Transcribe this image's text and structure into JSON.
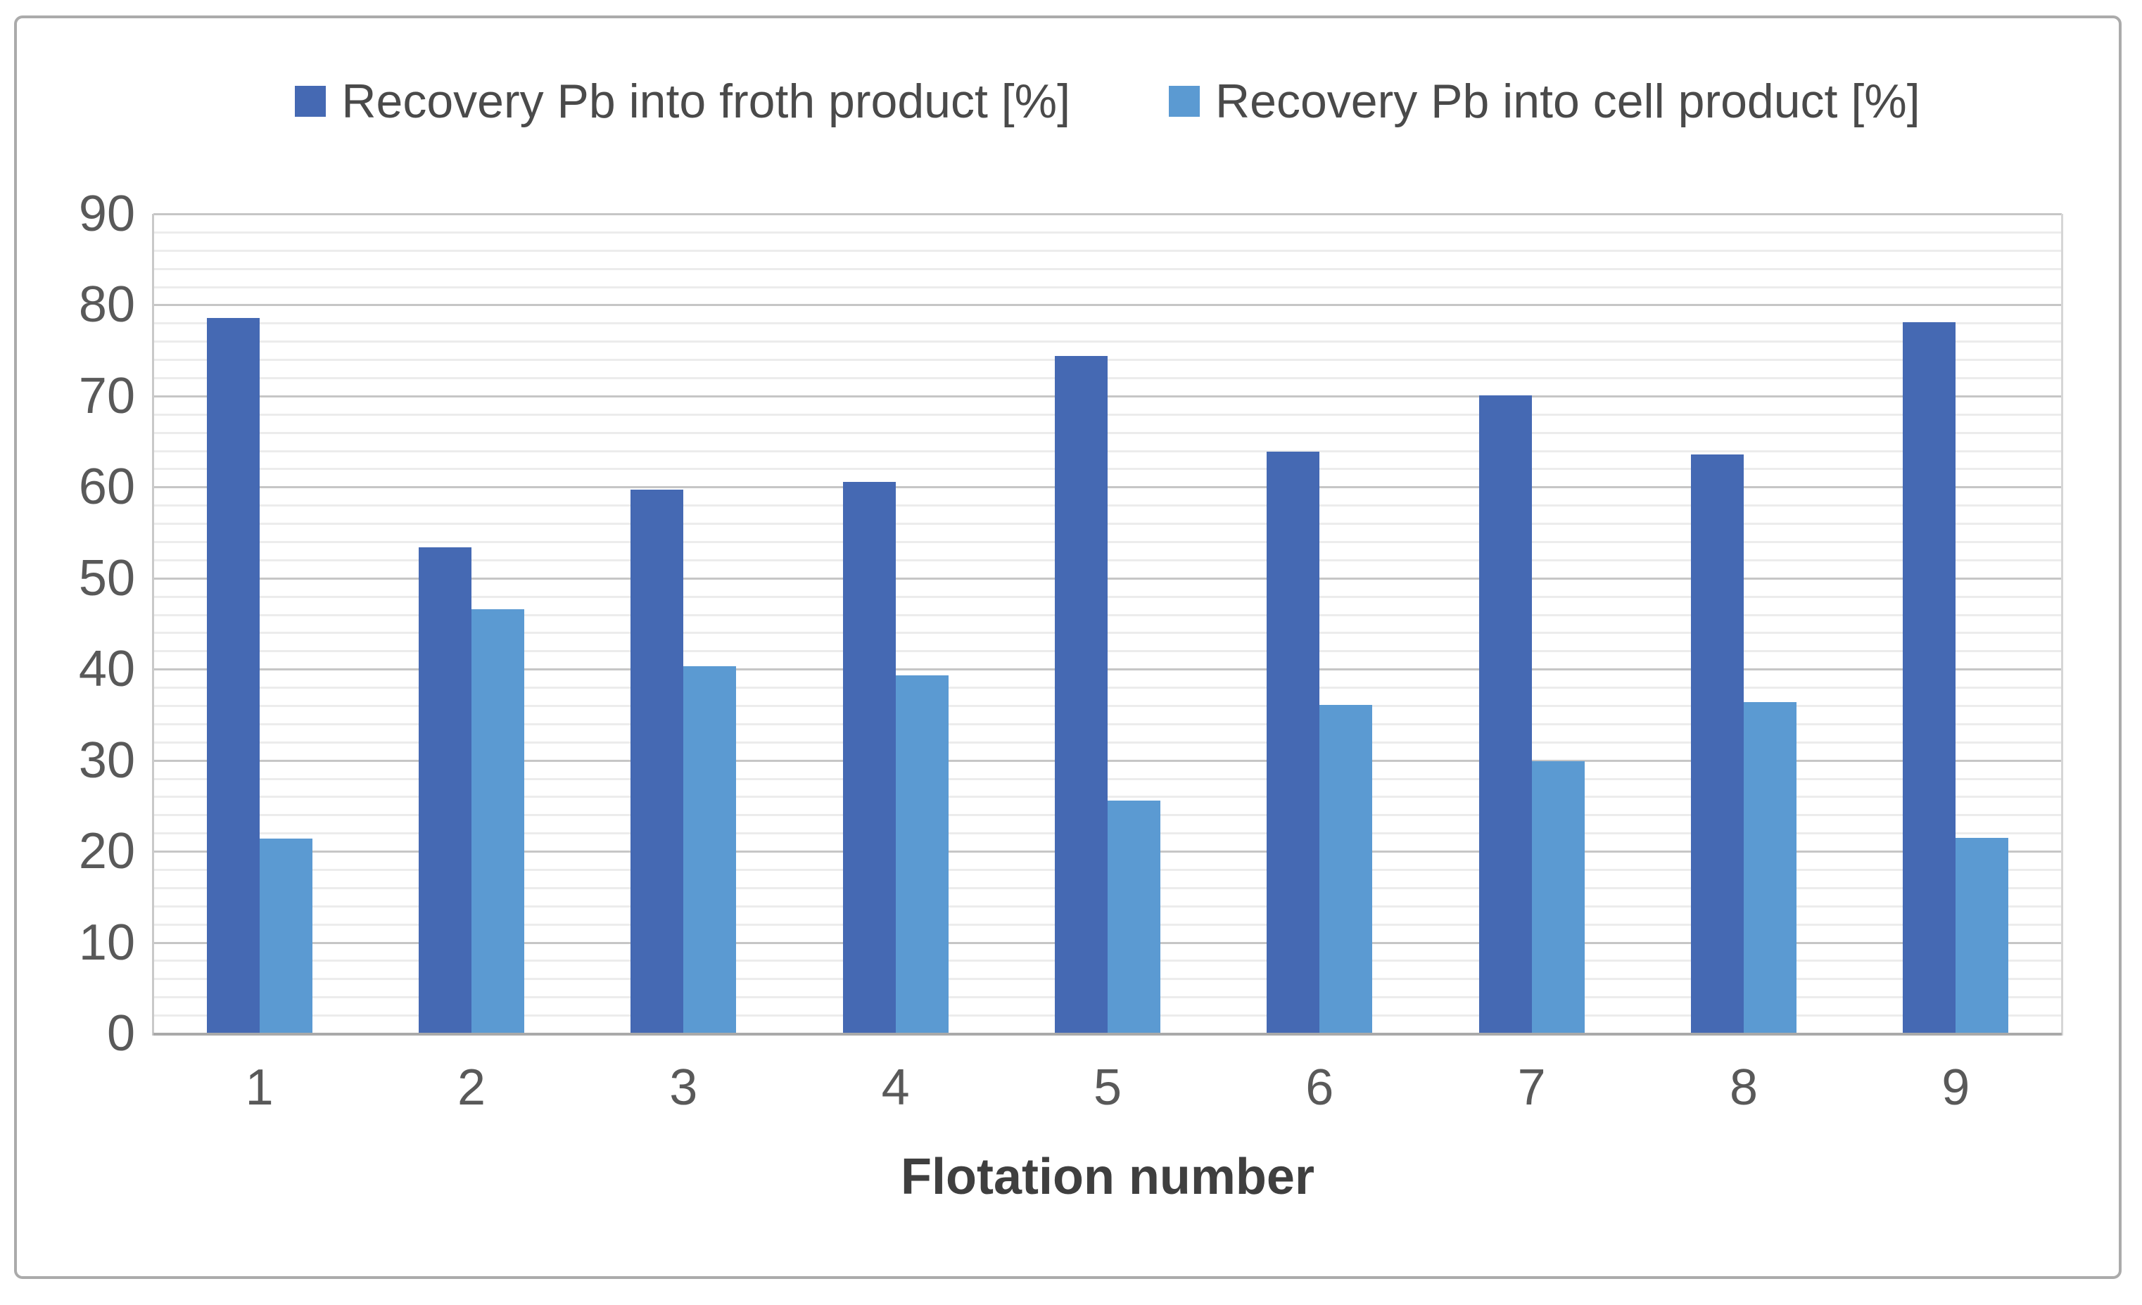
{
  "chart_data": {
    "type": "bar",
    "title": "",
    "xlabel": "Flotation number",
    "ylabel": "",
    "categories": [
      "1",
      "2",
      "3",
      "4",
      "5",
      "6",
      "7",
      "8",
      "9"
    ],
    "series": [
      {
        "name": "Recovery Pb into froth product [%]",
        "color": "#4569b3",
        "values": [
          78.6,
          53.4,
          59.7,
          60.6,
          74.4,
          63.9,
          70.1,
          63.6,
          78.1
        ]
      },
      {
        "name": "Recovery Pb into cell product [%]",
        "color": "#5b9ad2",
        "values": [
          21.4,
          46.6,
          40.3,
          39.3,
          25.6,
          36.1,
          29.9,
          36.4,
          21.5
        ]
      }
    ],
    "ylim": [
      0,
      90
    ],
    "y_major_step": 10,
    "y_minor_step": 2,
    "y_tick_labels": [
      "0",
      "10",
      "20",
      "30",
      "40",
      "50",
      "60",
      "70",
      "80",
      "90"
    ],
    "grid": true,
    "legend_position": "top"
  },
  "colors": {
    "grid_major": "#c6c6c6",
    "grid_minor": "#ececec",
    "axis_line": "#a9a9a9",
    "plot_edge": "#c9c9c9",
    "plot_right_edge": "#d6d6d6",
    "frame_border": "#ababab",
    "tick_text": "#595959",
    "legend_text": "#4a4a4a",
    "title_text": "#3f3f3f",
    "background": "#ffffff"
  }
}
